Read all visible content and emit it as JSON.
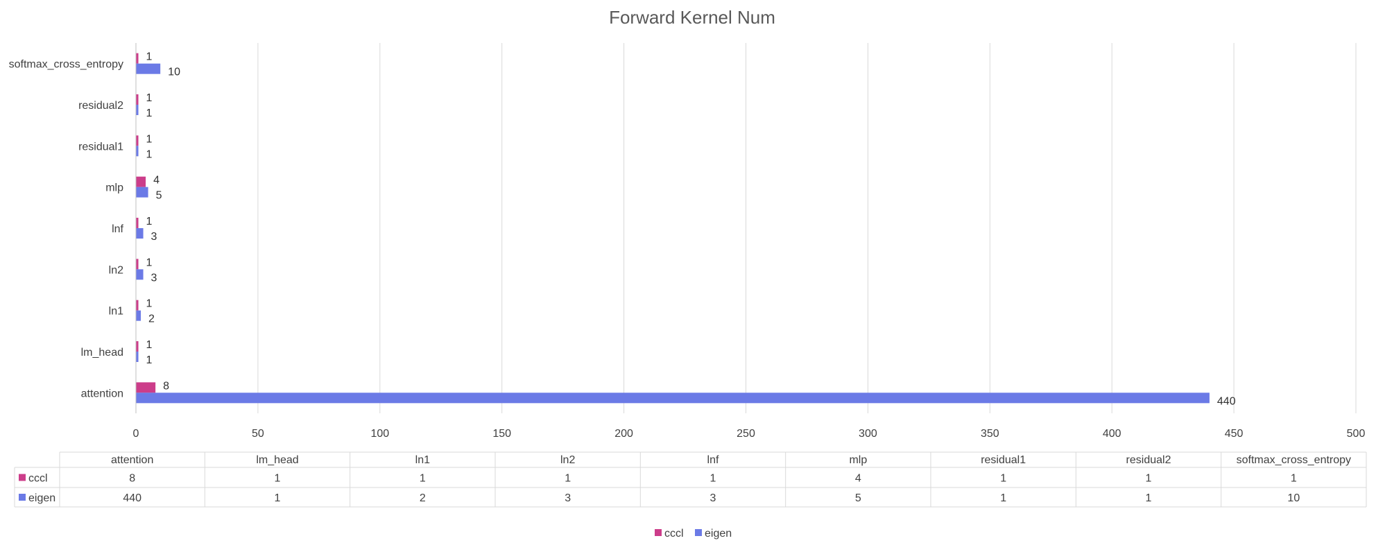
{
  "chart_data": {
    "type": "bar",
    "orientation": "horizontal",
    "title": "Forward Kernel Num",
    "categories": [
      "attention",
      "lm_head",
      "ln1",
      "ln2",
      "lnf",
      "mlp",
      "residual1",
      "residual2",
      "softmax_cross_entropy"
    ],
    "series": [
      {
        "name": "cccl",
        "color": "#cc3d8a",
        "values": [
          8,
          1,
          1,
          1,
          1,
          4,
          1,
          1,
          1
        ]
      },
      {
        "name": "eigen",
        "color": "#6b7ae6",
        "values": [
          440,
          1,
          2,
          3,
          3,
          5,
          1,
          1,
          10
        ]
      }
    ],
    "xlim": [
      0,
      500
    ],
    "xticks": [
      0,
      50,
      100,
      150,
      200,
      250,
      300,
      350,
      400,
      450,
      500
    ],
    "gridlines": true,
    "data_table": true,
    "legend": {
      "position": "bottom",
      "entries": [
        "cccl",
        "eigen"
      ]
    },
    "xlabel": "",
    "ylabel": ""
  }
}
